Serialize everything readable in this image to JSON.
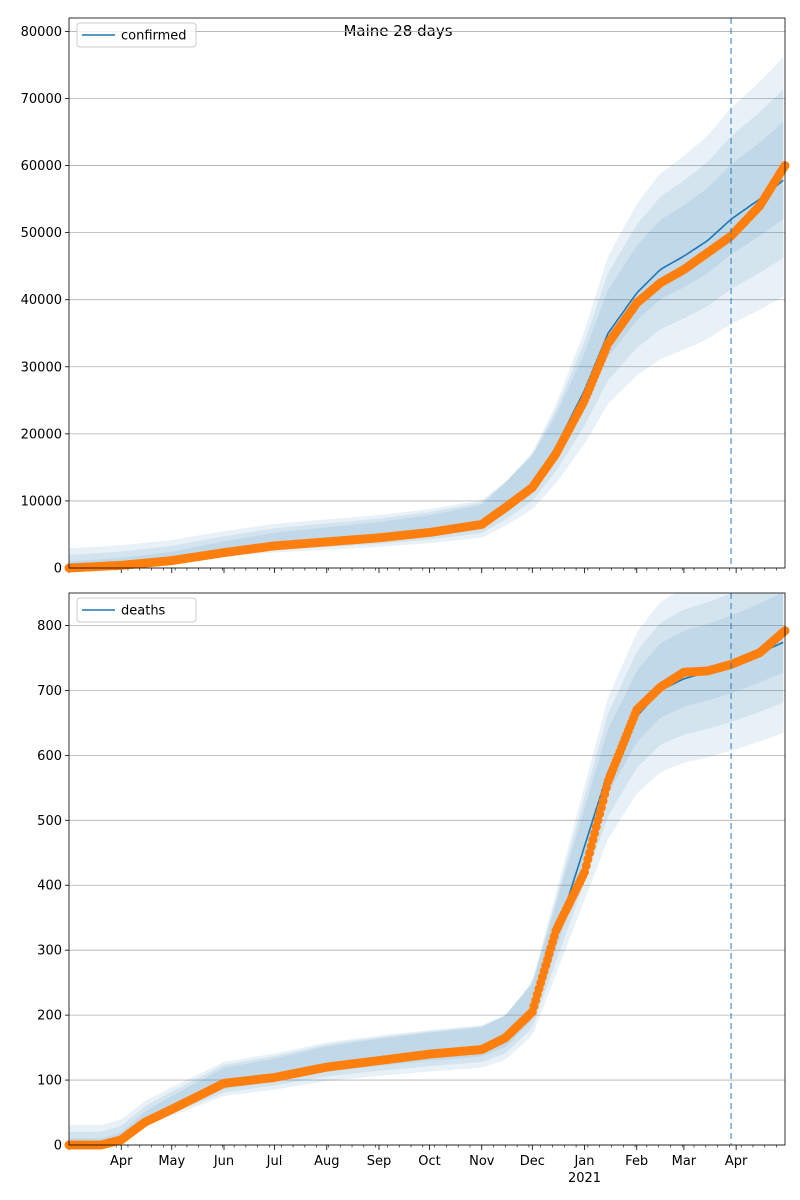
{
  "figure": {
    "title": "Maine 28 days",
    "colors": {
      "model": "#1f77b4",
      "band": "#1f77b4",
      "observed": "#ff7f0e",
      "grid": "#b0b0b0",
      "cutoff": "#1f77b4"
    },
    "x_axis": {
      "month_labels": [
        "Apr",
        "May",
        "Jun",
        "Jul",
        "Aug",
        "Sep",
        "Oct",
        "Nov",
        "Dec",
        "Jan",
        "Feb",
        "Mar",
        "Apr"
      ],
      "year_label": "2021"
    }
  },
  "chart_data": [
    {
      "type": "line",
      "legend": "confirmed",
      "legend_position": "upper left",
      "grid": "horizontal",
      "x_range": [
        "2020-03-01",
        "2021-04-30"
      ],
      "forecast_start": "2021-03-29",
      "ylim": [
        0,
        82000
      ],
      "yticks": [
        0,
        10000,
        20000,
        30000,
        40000,
        50000,
        60000,
        70000,
        80000
      ],
      "model": {
        "dates": [
          "2020-03-01",
          "2020-04-01",
          "2020-05-01",
          "2020-06-01",
          "2020-07-01",
          "2020-08-01",
          "2020-09-01",
          "2020-10-01",
          "2020-11-01",
          "2020-11-15",
          "2020-12-01",
          "2020-12-15",
          "2021-01-01",
          "2021-01-15",
          "2021-02-01",
          "2021-02-15",
          "2021-03-01",
          "2021-03-15",
          "2021-03-29",
          "2021-04-15",
          "2021-04-30"
        ],
        "values": [
          0,
          400,
          1100,
          2300,
          3300,
          3900,
          4500,
          5300,
          6500,
          9000,
          12500,
          18000,
          26500,
          35000,
          41000,
          44500,
          46500,
          48800,
          52000,
          55000,
          58000
        ]
      },
      "observed": {
        "dates": [
          "2020-03-01",
          "2020-04-01",
          "2020-05-01",
          "2020-06-01",
          "2020-07-01",
          "2020-08-01",
          "2020-09-01",
          "2020-10-01",
          "2020-11-01",
          "2020-11-15",
          "2020-12-01",
          "2020-12-15",
          "2021-01-01",
          "2021-01-15",
          "2021-02-01",
          "2021-02-15",
          "2021-03-01",
          "2021-03-15",
          "2021-03-29",
          "2021-04-15",
          "2021-04-30"
        ],
        "values": [
          0,
          400,
          1100,
          2300,
          3300,
          3900,
          4500,
          5300,
          6500,
          9000,
          12000,
          17000,
          25000,
          33500,
          39500,
          42500,
          44500,
          47000,
          49500,
          54000,
          60000
        ]
      },
      "band_rel_half_width": [
        0.1,
        0.2,
        0.3
      ]
    },
    {
      "type": "line",
      "legend": "deaths",
      "legend_position": "upper left",
      "grid": "horizontal",
      "x_range": [
        "2020-03-01",
        "2021-04-30"
      ],
      "forecast_start": "2021-03-29",
      "ylim": [
        0,
        850
      ],
      "yticks": [
        0,
        100,
        200,
        300,
        400,
        500,
        600,
        700,
        800
      ],
      "model": {
        "dates": [
          "2020-03-01",
          "2020-03-20",
          "2020-04-01",
          "2020-04-15",
          "2020-05-01",
          "2020-06-01",
          "2020-07-01",
          "2020-08-01",
          "2020-09-01",
          "2020-10-01",
          "2020-11-01",
          "2020-11-15",
          "2020-12-01",
          "2020-12-15",
          "2021-01-01",
          "2021-01-15",
          "2021-02-01",
          "2021-02-15",
          "2021-03-01",
          "2021-03-15",
          "2021-03-29",
          "2021-04-15",
          "2021-04-30"
        ],
        "values": [
          0,
          0,
          8,
          35,
          55,
          92,
          104,
          120,
          130,
          138,
          145,
          160,
          205,
          320,
          460,
          575,
          660,
          700,
          718,
          728,
          740,
          758,
          775
        ]
      },
      "observed": {
        "dates": [
          "2020-03-01",
          "2020-03-20",
          "2020-04-01",
          "2020-04-15",
          "2020-05-01",
          "2020-06-01",
          "2020-07-01",
          "2020-08-01",
          "2020-09-01",
          "2020-10-01",
          "2020-11-01",
          "2020-11-15",
          "2020-12-01",
          "2020-12-15",
          "2021-01-01",
          "2021-01-15",
          "2021-02-01",
          "2021-02-15",
          "2021-03-01",
          "2021-03-15",
          "2021-03-29",
          "2021-04-15",
          "2021-04-30"
        ],
        "values": [
          0,
          0,
          8,
          35,
          55,
          95,
          104,
          120,
          130,
          140,
          147,
          165,
          205,
          330,
          420,
          560,
          670,
          705,
          728,
          730,
          740,
          758,
          792
        ]
      },
      "band_rel_half_width": [
        0.06,
        0.12,
        0.18
      ]
    }
  ]
}
